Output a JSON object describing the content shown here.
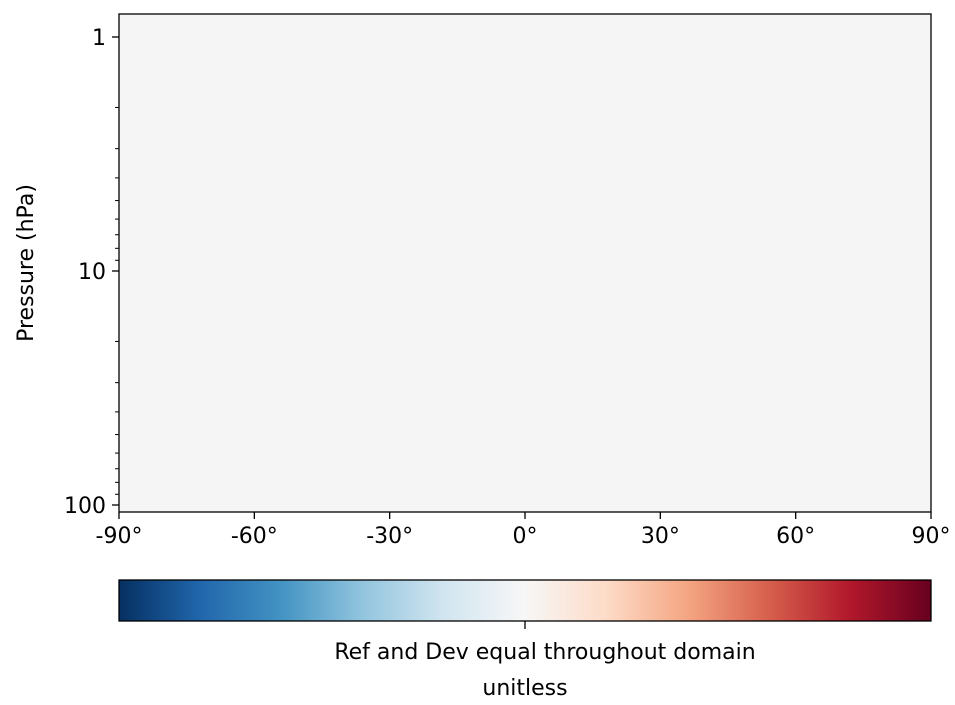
{
  "chart_data": {
    "type": "heatmap",
    "title": "",
    "xlabel": "",
    "ylabel": "Pressure (hPa)",
    "x_ticks": [
      "-90°",
      "-60°",
      "-30°",
      "0°",
      "30°",
      "60°",
      "90°"
    ],
    "x_tick_values": [
      -90,
      -60,
      -30,
      0,
      30,
      60,
      90
    ],
    "xlim": [
      -90,
      90
    ],
    "y_ticks": [
      "1",
      "10",
      "100"
    ],
    "y_tick_values": [
      1,
      10,
      100
    ],
    "ylim": [
      1,
      100
    ],
    "y_scale": "log",
    "y_inverted": true,
    "grid": false,
    "field_value": 0,
    "field_color": "#f5f5f5",
    "colorbar": {
      "orientation": "horizontal",
      "colormap": "RdBu_r",
      "colors": [
        "#053061",
        "#2166ac",
        "#4393c3",
        "#92c5de",
        "#d1e5f0",
        "#f7f7f7",
        "#fddbc7",
        "#f4a582",
        "#d6604d",
        "#b2182b",
        "#67001f"
      ],
      "center_value": 0,
      "label": "Ref and Dev equal throughout domain",
      "units": "unitless"
    }
  }
}
